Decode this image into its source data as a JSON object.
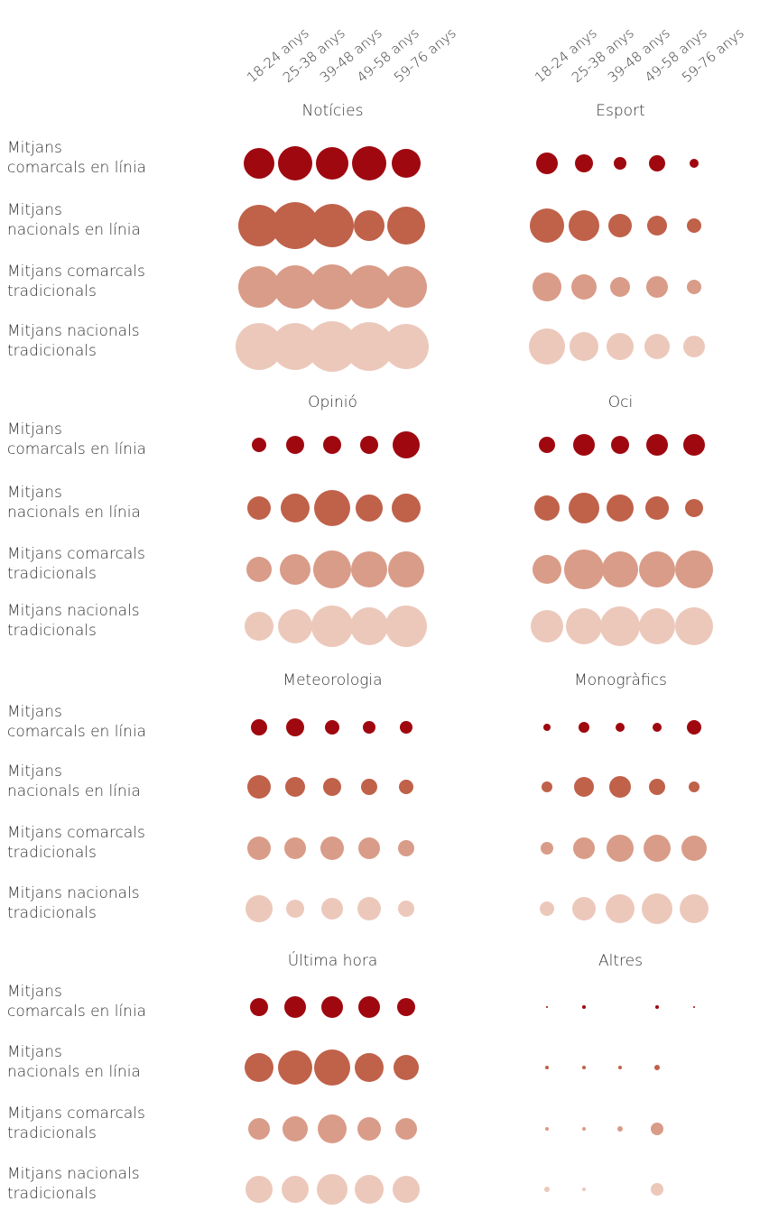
{
  "chart_data": {
    "type": "bubble",
    "categories": [
      "18-24 anys",
      "25-38 anys",
      "39-48 anys",
      "49-58 anys",
      "59-76 anys"
    ],
    "series": [
      {
        "name": "Mitjans\ncomarcals en línia",
        "color": "#a0080f"
      },
      {
        "name": "Mitjans\nnacionals en línia",
        "color": "#c0614a"
      },
      {
        "name": "Mitjans comarcals\ntradicionals",
        "color": "#d99c88"
      },
      {
        "name": "Mitjans nacionals\ntradicionals",
        "color": "#ecc8bb"
      }
    ],
    "panels": [
      {
        "title": "Notícies",
        "values": [
          [
            34,
            38,
            36,
            38,
            32
          ],
          [
            46,
            52,
            48,
            34,
            42
          ],
          [
            46,
            48,
            50,
            48,
            46
          ],
          [
            52,
            52,
            56,
            54,
            50
          ]
        ]
      },
      {
        "title": "Esport",
        "values": [
          [
            24,
            20,
            14,
            18,
            10
          ],
          [
            38,
            34,
            26,
            22,
            16
          ],
          [
            32,
            28,
            22,
            24,
            16
          ],
          [
            40,
            32,
            30,
            28,
            24
          ]
        ]
      },
      {
        "title": "Opinió",
        "values": [
          [
            16,
            20,
            20,
            20,
            30
          ],
          [
            26,
            32,
            40,
            30,
            32
          ],
          [
            28,
            34,
            42,
            40,
            40
          ],
          [
            32,
            38,
            46,
            42,
            46
          ]
        ]
      },
      {
        "title": "Oci",
        "values": [
          [
            18,
            24,
            20,
            24,
            24
          ],
          [
            28,
            34,
            30,
            26,
            20
          ],
          [
            32,
            44,
            40,
            40,
            42
          ],
          [
            36,
            40,
            44,
            40,
            42
          ]
        ]
      },
      {
        "title": "Meteorologia",
        "values": [
          [
            18,
            20,
            16,
            14,
            14
          ],
          [
            26,
            22,
            20,
            18,
            16
          ],
          [
            26,
            24,
            26,
            24,
            18
          ],
          [
            30,
            20,
            24,
            26,
            18
          ]
        ]
      },
      {
        "title": "Monogràfics",
        "values": [
          [
            8,
            12,
            10,
            10,
            16
          ],
          [
            12,
            22,
            24,
            18,
            12
          ],
          [
            14,
            24,
            30,
            30,
            28
          ],
          [
            16,
            26,
            32,
            34,
            32
          ]
        ]
      },
      {
        "title": "Última hora",
        "values": [
          [
            20,
            24,
            24,
            24,
            20
          ],
          [
            32,
            38,
            40,
            32,
            28
          ],
          [
            24,
            28,
            32,
            26,
            24
          ],
          [
            30,
            30,
            34,
            32,
            30
          ]
        ]
      },
      {
        "title": "Altres",
        "values": [
          [
            2,
            4,
            null,
            4,
            2
          ],
          [
            4,
            4,
            4,
            6,
            null
          ],
          [
            4,
            4,
            6,
            14,
            null
          ],
          [
            6,
            4,
            null,
            14,
            null
          ]
        ]
      }
    ]
  }
}
